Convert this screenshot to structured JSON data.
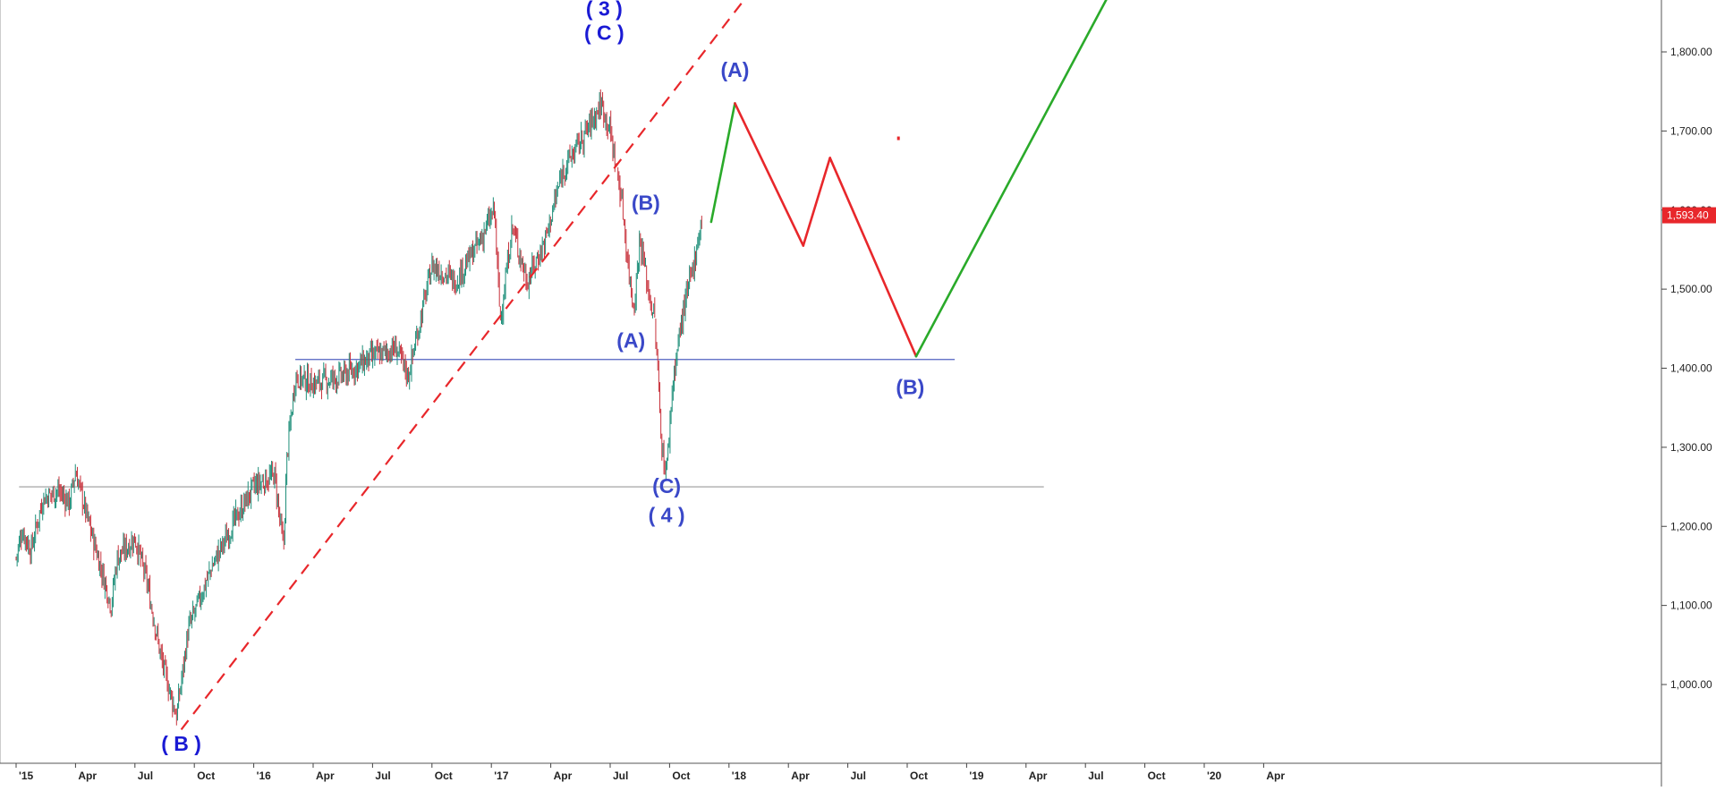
{
  "chart_data": {
    "type": "line",
    "title": "",
    "xlabel": "",
    "ylabel": "",
    "ylim": [
      920,
      1880
    ],
    "y_ticks": [
      {
        "value": 1800,
        "label": "1,800.00"
      },
      {
        "value": 1700,
        "label": "1,700.00"
      },
      {
        "value": 1600,
        "label": "1,600.00"
      },
      {
        "value": 1500,
        "label": "1,500.00"
      },
      {
        "value": 1400,
        "label": "1,400.00"
      },
      {
        "value": 1300,
        "label": "1,300.00"
      },
      {
        "value": 1200,
        "label": "1,200.00"
      },
      {
        "value": 1100,
        "label": "1,100.00"
      },
      {
        "value": 1000,
        "label": "1,000.00"
      }
    ],
    "x_ticks": [
      "'15",
      "Apr",
      "Jul",
      "Oct",
      "'16",
      "Apr",
      "Jul",
      "Oct",
      "'17",
      "Apr",
      "Jul",
      "Oct",
      "'18",
      "Apr",
      "Jul",
      "Oct",
      "'19",
      "Apr",
      "Jul",
      "Oct",
      "'20",
      "Apr"
    ],
    "last_price": {
      "value": 1593.4,
      "label": "1,593.40",
      "color": "#e8272b"
    },
    "price_series": {
      "name": "",
      "style": "candlestick",
      "up_color": "#1f8f7a",
      "down_color": "#c8323c",
      "points": [
        {
          "t": 0.0,
          "v": 1160
        },
        {
          "t": 0.1,
          "v": 1195
        },
        {
          "t": 0.25,
          "v": 1170
        },
        {
          "t": 0.45,
          "v": 1235
        },
        {
          "t": 0.7,
          "v": 1245
        },
        {
          "t": 0.9,
          "v": 1230
        },
        {
          "t": 1.0,
          "v": 1270
        },
        {
          "t": 1.2,
          "v": 1210
        },
        {
          "t": 1.6,
          "v": 1100
        },
        {
          "t": 1.7,
          "v": 1160
        },
        {
          "t": 2.0,
          "v": 1185
        },
        {
          "t": 2.2,
          "v": 1130
        },
        {
          "t": 2.45,
          "v": 1030
        },
        {
          "t": 2.7,
          "v": 960
        },
        {
          "t": 2.9,
          "v": 1070
        },
        {
          "t": 3.3,
          "v": 1150
        },
        {
          "t": 3.7,
          "v": 1210
        },
        {
          "t": 4.0,
          "v": 1250
        },
        {
          "t": 4.35,
          "v": 1265
        },
        {
          "t": 4.5,
          "v": 1170
        },
        {
          "t": 4.56,
          "v": 1290
        },
        {
          "t": 4.7,
          "v": 1390
        },
        {
          "t": 5.0,
          "v": 1380
        },
        {
          "t": 5.5,
          "v": 1390
        },
        {
          "t": 6.0,
          "v": 1415
        },
        {
          "t": 6.4,
          "v": 1425
        },
        {
          "t": 6.6,
          "v": 1390
        },
        {
          "t": 7.0,
          "v": 1530
        },
        {
          "t": 7.4,
          "v": 1510
        },
        {
          "t": 7.8,
          "v": 1560
        },
        {
          "t": 8.05,
          "v": 1600
        },
        {
          "t": 8.15,
          "v": 1460
        },
        {
          "t": 8.35,
          "v": 1580
        },
        {
          "t": 8.6,
          "v": 1510
        },
        {
          "t": 8.9,
          "v": 1560
        },
        {
          "t": 9.2,
          "v": 1650
        },
        {
          "t": 9.6,
          "v": 1700
        },
        {
          "t": 9.85,
          "v": 1735
        },
        {
          "t": 10.0,
          "v": 1700
        },
        {
          "t": 10.2,
          "v": 1610
        },
        {
          "t": 10.3,
          "v": 1530
        },
        {
          "t": 10.4,
          "v": 1475
        },
        {
          "t": 10.5,
          "v": 1565
        },
        {
          "t": 10.65,
          "v": 1495
        },
        {
          "t": 10.75,
          "v": 1460
        },
        {
          "t": 10.88,
          "v": 1290
        },
        {
          "t": 10.95,
          "v": 1270
        },
        {
          "t": 11.05,
          "v": 1380
        },
        {
          "t": 11.2,
          "v": 1460
        },
        {
          "t": 11.4,
          "v": 1530
        },
        {
          "t": 11.55,
          "v": 1593
        }
      ]
    },
    "trendline": {
      "color": "#e8272b",
      "style": "dashed",
      "points": [
        {
          "t": 2.78,
          "v": 943
        },
        {
          "t": 12.4,
          "v": 1880
        }
      ]
    },
    "horizontal_lines": [
      {
        "value": 1411,
        "t_start": 4.7,
        "t_end": 15.8,
        "color": "#5060c0"
      },
      {
        "value": 1250,
        "t_start": 0.05,
        "t_end": 17.3,
        "color": "#9a9a9a"
      }
    ],
    "projection": {
      "segments": [
        {
          "color": "#2aaa2a",
          "from": {
            "t": 11.7,
            "v": 1585
          },
          "to": {
            "t": 12.1,
            "v": 1735
          }
        },
        {
          "color": "#e8272b",
          "from": {
            "t": 12.1,
            "v": 1735
          },
          "to": {
            "t": 13.25,
            "v": 1555
          }
        },
        {
          "color": "#e8272b",
          "from": {
            "t": 13.25,
            "v": 1555
          },
          "to": {
            "t": 13.7,
            "v": 1666
          }
        },
        {
          "color": "#e8272b",
          "from": {
            "t": 13.7,
            "v": 1666
          },
          "to": {
            "t": 15.15,
            "v": 1415
          }
        },
        {
          "color": "#2aaa2a",
          "from": {
            "t": 15.15,
            "v": 1415
          },
          "to": {
            "t": 18.45,
            "v": 1880
          }
        }
      ]
    },
    "annotations": [
      {
        "text": "( 3 )",
        "t": 9.9,
        "v": 1853,
        "color": "#1a1ad4"
      },
      {
        "text": "( C )",
        "t": 9.9,
        "v": 1822,
        "color": "#1a1ad4"
      },
      {
        "text": "(A)",
        "t": 12.1,
        "v": 1775,
        "color": "#3a48c8"
      },
      {
        "text": "(B)",
        "t": 10.6,
        "v": 1607,
        "color": "#3a48c8"
      },
      {
        "text": "(A)",
        "t": 10.35,
        "v": 1433,
        "color": "#3a48c8"
      },
      {
        "text": "(B)",
        "t": 15.05,
        "v": 1374,
        "color": "#3a48c8"
      },
      {
        "text": "(C)",
        "t": 10.95,
        "v": 1249,
        "color": "#3a48c8"
      },
      {
        "text": "( 4 )",
        "t": 10.95,
        "v": 1212,
        "color": "#3a48c8"
      },
      {
        "text": "( B )",
        "t": 2.78,
        "v": 923,
        "color": "#1a1ad4"
      }
    ],
    "grid": false,
    "legend": "none"
  }
}
